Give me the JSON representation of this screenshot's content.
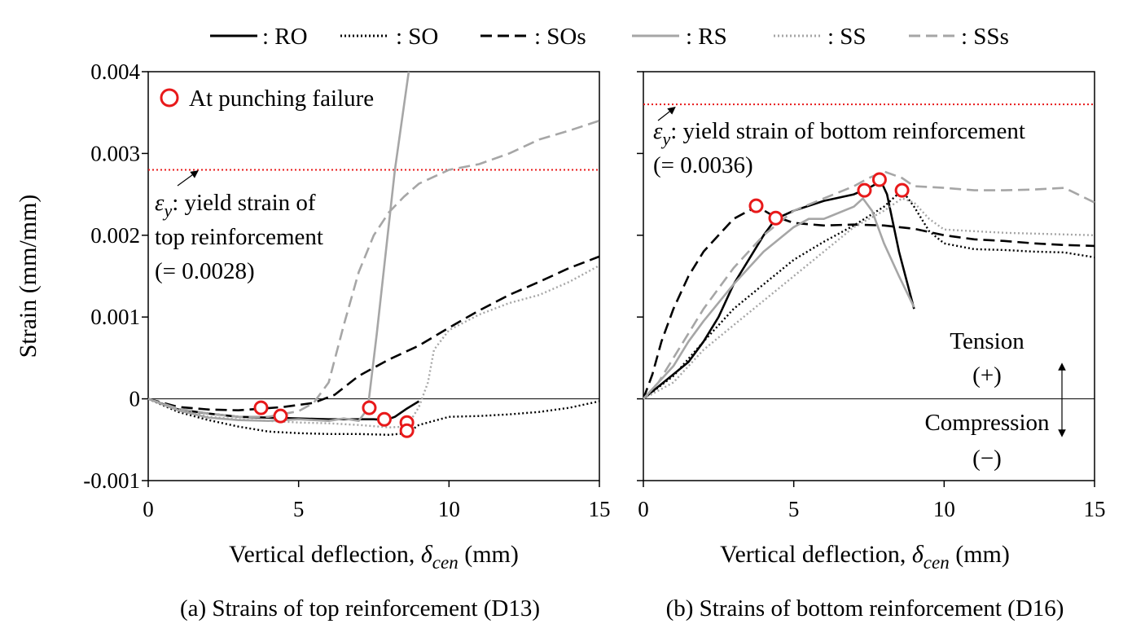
{
  "legend": [
    {
      "label": ": RO",
      "color": "#000000",
      "dash": "solid"
    },
    {
      "label": ": SO",
      "color": "#000000",
      "dash": "dotted"
    },
    {
      "label": ": SOs",
      "color": "#000000",
      "dash": "dashed"
    },
    {
      "label": ": RS",
      "color": "#a6a6a6",
      "dash": "solid"
    },
    {
      "label": ": SS",
      "color": "#a6a6a6",
      "dash": "dotted"
    },
    {
      "label": ": SSs",
      "color": "#a6a6a6",
      "dash": "dashed"
    }
  ],
  "colors": {
    "black": "#000000",
    "gray": "#a6a6a6",
    "marker": "#e8191a",
    "yield_line": "#e8191a"
  },
  "shared": {
    "ylabel": "Strain (mm/mm)",
    "xlabel_prefix": "Vertical deflection, ",
    "xlabel_symbol": "δ",
    "xlabel_subscript": "cen",
    "xlabel_suffix": " (mm)",
    "marker_legend": "At punching failure",
    "tension_label": "Tension",
    "tension_sign": "(+)",
    "compression_label": "Compression",
    "compression_sign": "(−)"
  },
  "chart_data": [
    {
      "type": "line",
      "caption": "(a)  Strains of top reinforcement (D13)",
      "xlim": [
        0,
        15
      ],
      "ylim": [
        -0.001,
        0.004
      ],
      "xticks": [
        "0",
        "5",
        "10",
        "15"
      ],
      "yticks": [
        "-0.001",
        "0",
        "0.001",
        "0.002",
        "0.003",
        "0.004"
      ],
      "yield_strain": 0.0028,
      "yield_symbol": "ε",
      "yield_subscript": "y",
      "yield_text_lines": [
        ": yield strain of",
        "top reinforcement",
        "(= 0.0028)"
      ],
      "series": [
        {
          "name": ": RO",
          "x": [
            0,
            1,
            2,
            3,
            4,
            5,
            6,
            7,
            7.5,
            7.9,
            8.2,
            8.6,
            9.0
          ],
          "y": [
            0,
            -0.00013,
            -0.00018,
            -0.00022,
            -0.00023,
            -0.00024,
            -0.00025,
            -0.00025,
            -0.00025,
            -0.00026,
            -0.00022,
            -0.00012,
            -3e-05
          ]
        },
        {
          "name": ": SO",
          "x": [
            0,
            1,
            2,
            3,
            4,
            5,
            6,
            7,
            8,
            8.6,
            9,
            10,
            11,
            12,
            13,
            14,
            15
          ],
          "y": [
            0,
            -0.00016,
            -0.00026,
            -0.00034,
            -0.0004,
            -0.00042,
            -0.00043,
            -0.00043,
            -0.00044,
            -0.00042,
            -0.00032,
            -0.00022,
            -0.00021,
            -0.00019,
            -0.00016,
            -0.00011,
            -3e-05
          ]
        },
        {
          "name": ": SOs",
          "x": [
            0,
            1,
            2,
            3,
            3.8,
            4.5,
            5.5,
            6.2,
            7,
            8,
            9,
            10,
            11,
            12,
            13,
            14,
            15
          ],
          "y": [
            0,
            -0.0001,
            -0.00013,
            -0.00014,
            -0.00012,
            -0.0001,
            -5e-05,
            5e-05,
            0.00028,
            0.00048,
            0.00065,
            0.00087,
            0.00108,
            0.00127,
            0.00143,
            0.0016,
            0.00174
          ]
        },
        {
          "name": ": RS",
          "x": [
            0,
            1,
            2,
            3,
            4,
            5,
            6,
            6.5,
            7,
            7.3,
            7.6,
            7.9,
            8.2,
            8.7
          ],
          "y": [
            0,
            -0.00014,
            -0.00023,
            -0.00026,
            -0.00027,
            -0.00025,
            -0.00027,
            -0.00024,
            -0.00027,
            -0.00012,
            0.0008,
            0.0018,
            0.0028,
            0.0041
          ]
        },
        {
          "name": ": SS",
          "x": [
            0,
            1,
            2,
            3,
            4,
            5,
            6,
            7,
            8,
            8.6,
            9.0,
            9.3,
            9.5,
            10,
            11,
            12,
            13,
            14,
            15
          ],
          "y": [
            0,
            -0.00013,
            -0.00022,
            -0.00025,
            -0.00027,
            -0.00029,
            -0.0003,
            -0.00032,
            -0.00035,
            -0.00034,
            -0.0001,
            0.0002,
            0.0006,
            0.00084,
            0.00103,
            0.00117,
            0.00127,
            0.00143,
            0.00163
          ]
        },
        {
          "name": ": SSs",
          "x": [
            0,
            1,
            2,
            3,
            4,
            5,
            5.5,
            6.0,
            6.5,
            7.0,
            7.5,
            8.0,
            8.5,
            9.0,
            10,
            11,
            12,
            13,
            14,
            15
          ],
          "y": [
            0,
            -0.00012,
            -0.00018,
            -0.00022,
            -0.00022,
            -0.00015,
            -5e-05,
            0.0002,
            0.0009,
            0.00155,
            0.002,
            0.00228,
            0.00247,
            0.00263,
            0.0028,
            0.00287,
            0.003,
            0.00317,
            0.00328,
            0.0034
          ]
        }
      ],
      "markers": [
        {
          "x": 3.75,
          "y": -0.00011
        },
        {
          "x": 4.4,
          "y": -0.00021
        },
        {
          "x": 7.35,
          "y": -0.00011
        },
        {
          "x": 7.85,
          "y": -0.00025
        },
        {
          "x": 8.6,
          "y": -0.00029
        },
        {
          "x": 8.6,
          "y": -0.00039
        }
      ]
    },
    {
      "type": "line",
      "caption": "(b)  Strains of bottom reinforcement (D16)",
      "xlim": [
        0,
        15
      ],
      "ylim": [
        -0.001,
        0.004
      ],
      "xticks": [
        "0",
        "5",
        "10",
        "15"
      ],
      "yield_strain": 0.0036,
      "yield_symbol": "ε",
      "yield_subscript": "y",
      "yield_text_lines": [
        ": yield strain of bottom reinforcement",
        "(= 0.0036)"
      ],
      "series": [
        {
          "name": ": RO",
          "x": [
            0,
            0.5,
            1,
            1.5,
            2,
            2.5,
            3,
            3.5,
            4,
            4.4,
            5,
            6,
            7,
            7.5,
            7.9,
            8.1,
            8.5,
            9.0
          ],
          "y": [
            0,
            0.00015,
            0.0003,
            0.00045,
            0.0007,
            0.001,
            0.0014,
            0.0017,
            0.002,
            0.0022,
            0.0023,
            0.00242,
            0.0025,
            0.00258,
            0.00266,
            0.0025,
            0.0018,
            0.0011
          ]
        },
        {
          "name": ": SO",
          "x": [
            0,
            1,
            2,
            3,
            4,
            5,
            6,
            7,
            8,
            8.6,
            9,
            9.5,
            10,
            11,
            12,
            13,
            14,
            15
          ],
          "y": [
            0,
            0.00028,
            0.0007,
            0.0011,
            0.0014,
            0.0017,
            0.00192,
            0.00212,
            0.00235,
            0.00255,
            0.00235,
            0.00205,
            0.0019,
            0.00183,
            0.00182,
            0.0018,
            0.00179,
            0.00173
          ]
        },
        {
          "name": ": SOs",
          "x": [
            0,
            0.3,
            0.6,
            1,
            1.5,
            2,
            2.5,
            3,
            3.5,
            3.8,
            4.3,
            5,
            6,
            7,
            8,
            9,
            10,
            11,
            12,
            13,
            14,
            15
          ],
          "y": [
            0,
            0.0003,
            0.0007,
            0.0011,
            0.0015,
            0.0018,
            0.002,
            0.0022,
            0.0023,
            0.00235,
            0.00224,
            0.00215,
            0.00212,
            0.00213,
            0.00212,
            0.00208,
            0.002,
            0.00195,
            0.00193,
            0.0019,
            0.00188,
            0.00187
          ]
        },
        {
          "name": ": RS",
          "x": [
            0,
            0.5,
            1,
            1.5,
            2,
            3,
            4,
            5,
            5.5,
            6,
            7,
            7.3,
            7.6,
            8.0,
            8.5,
            9.0
          ],
          "y": [
            0,
            0.0002,
            0.0004,
            0.0007,
            0.00095,
            0.0014,
            0.0018,
            0.0021,
            0.0022,
            0.0022,
            0.00235,
            0.00245,
            0.0023,
            0.0019,
            0.0015,
            0.00112
          ]
        },
        {
          "name": ": SS",
          "x": [
            0,
            1,
            2,
            3,
            4,
            5,
            6,
            7,
            8,
            8.6,
            9,
            9.5,
            10,
            11,
            12,
            13,
            14,
            15
          ],
          "y": [
            0,
            0.0002,
            0.0006,
            0.0009,
            0.0012,
            0.0015,
            0.0018,
            0.0021,
            0.0023,
            0.00245,
            0.0024,
            0.0022,
            0.00207,
            0.00205,
            0.00203,
            0.00202,
            0.00201,
            0.002
          ]
        },
        {
          "name": ": SSs",
          "x": [
            0,
            0.5,
            1,
            1.5,
            2,
            3,
            4,
            5,
            6,
            7,
            7.5,
            8,
            8.6,
            9,
            10,
            11,
            12,
            13,
            14,
            15
          ],
          "y": [
            0,
            0.0002,
            0.0005,
            0.0008,
            0.0011,
            0.0016,
            0.002,
            0.0023,
            0.00245,
            0.0026,
            0.0027,
            0.00278,
            0.0027,
            0.0026,
            0.00258,
            0.00255,
            0.00255,
            0.00256,
            0.00258,
            0.0024
          ]
        }
      ],
      "markers": [
        {
          "x": 3.75,
          "y": 0.00236
        },
        {
          "x": 4.4,
          "y": 0.00221
        },
        {
          "x": 7.35,
          "y": 0.00255
        },
        {
          "x": 7.85,
          "y": 0.00268
        },
        {
          "x": 8.6,
          "y": 0.00255
        }
      ]
    }
  ]
}
